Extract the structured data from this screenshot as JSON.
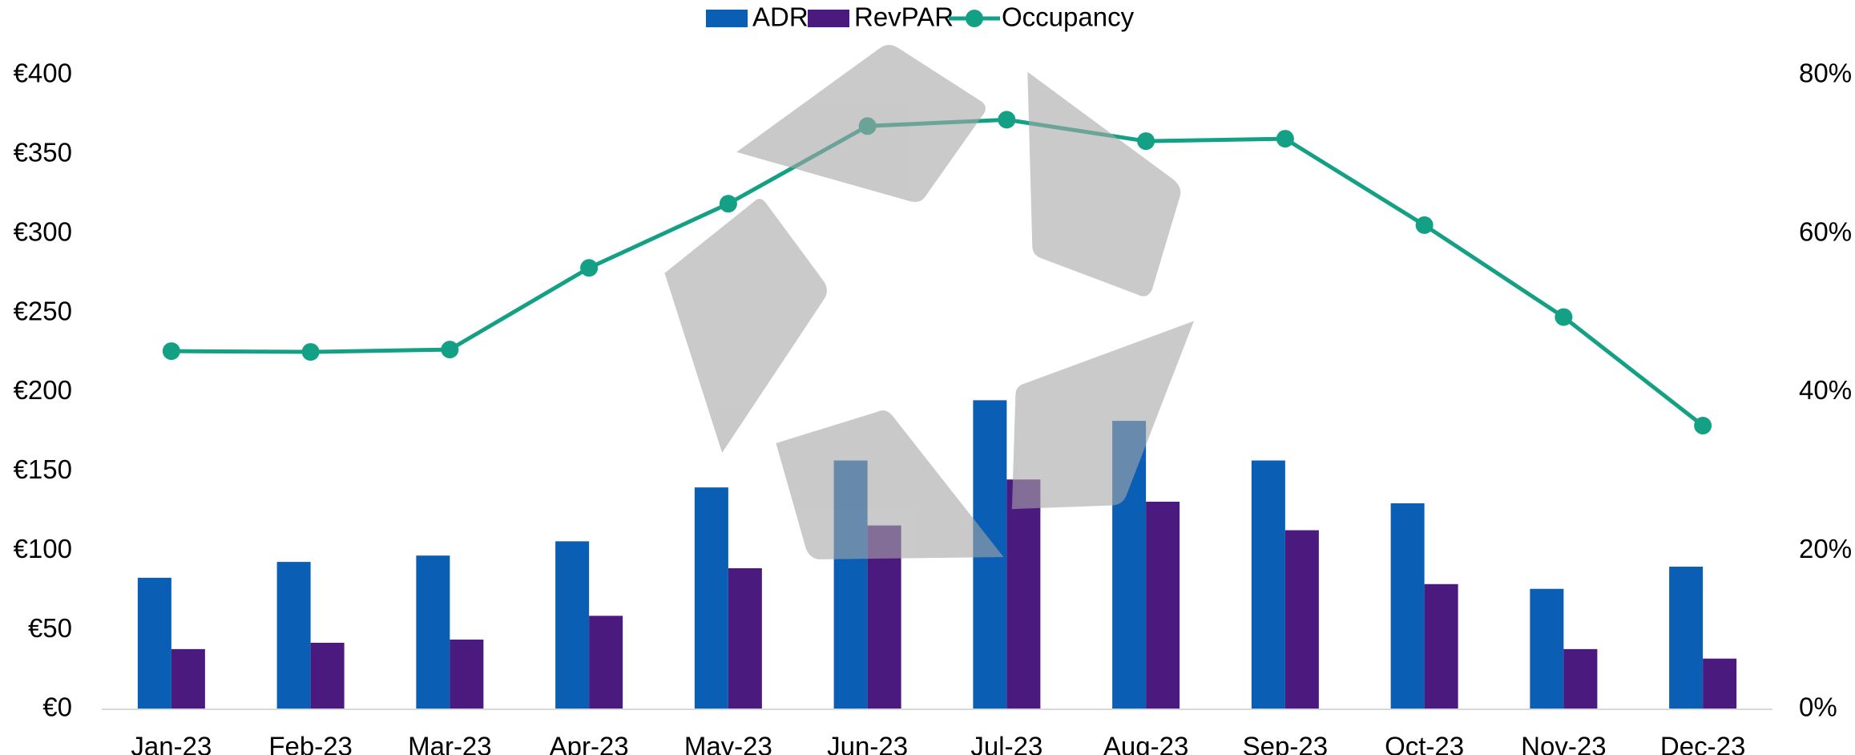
{
  "chart_data": {
    "type": "bar",
    "categories": [
      "Jan-23",
      "Feb-23",
      "Mar-23",
      "Apr-23",
      "May-23",
      "Jun-23",
      "Jul-23",
      "Aug-23",
      "Sep-23",
      "Oct-23",
      "Nov-23",
      "Dec-23"
    ],
    "series": [
      {
        "name": "ADR",
        "type": "bar",
        "color": "#0a5fb4",
        "values": [
          83,
          93,
          97,
          106,
          140,
          157,
          195,
          182,
          157,
          130,
          76,
          90
        ]
      },
      {
        "name": "RevPAR",
        "type": "bar",
        "color": "#4b1a7e",
        "values": [
          38,
          42,
          44,
          59,
          89,
          116,
          145,
          131,
          113,
          79,
          38,
          32
        ]
      },
      {
        "name": "Occupancy",
        "type": "line",
        "axis": "y2",
        "color": "#13a085",
        "values": [
          45.2,
          45.1,
          45.4,
          55.7,
          63.8,
          73.6,
          74.4,
          71.7,
          72.0,
          61.1,
          49.5,
          35.8
        ]
      }
    ],
    "ylim": [
      0,
      400
    ],
    "yticks": [
      {
        "value": 0,
        "label": "€0"
      },
      {
        "value": 50,
        "label": "€50"
      },
      {
        "value": 100,
        "label": "€100"
      },
      {
        "value": 150,
        "label": "€150"
      },
      {
        "value": 200,
        "label": "€200"
      },
      {
        "value": 250,
        "label": "€250"
      },
      {
        "value": 300,
        "label": "€300"
      },
      {
        "value": 350,
        "label": "€350"
      },
      {
        "value": 400,
        "label": "€400"
      }
    ],
    "y2lim": [
      0,
      80
    ],
    "y2ticks": [
      {
        "value": 0,
        "label": "0%"
      },
      {
        "value": 20,
        "label": "20%"
      },
      {
        "value": 40,
        "label": "40%"
      },
      {
        "value": 60,
        "label": "60%"
      },
      {
        "value": 80,
        "label": "80%"
      }
    ],
    "legend": "top"
  }
}
